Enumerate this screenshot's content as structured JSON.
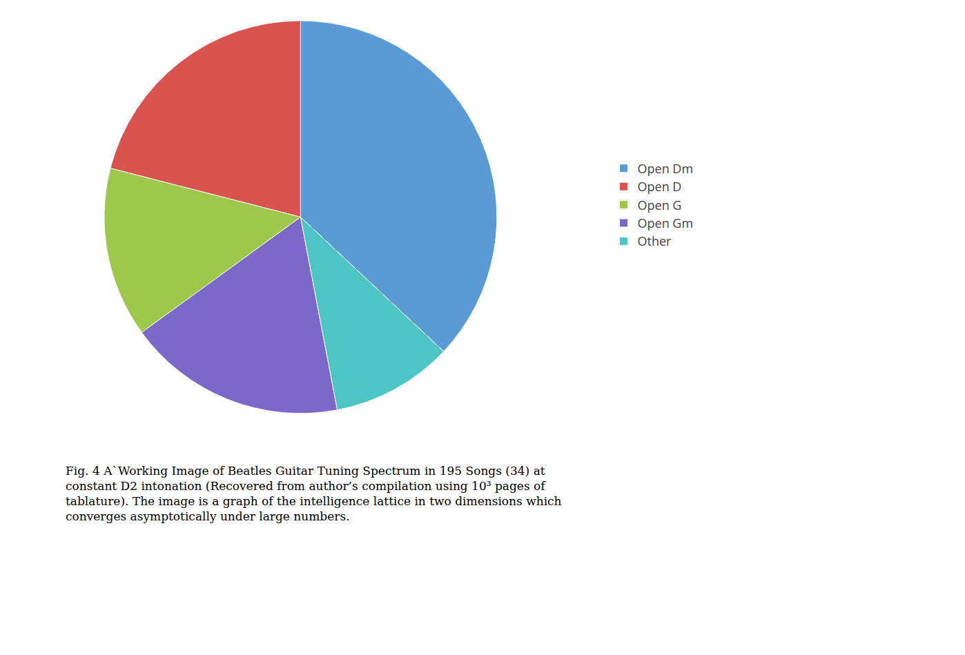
{
  "chart_data": {
    "type": "pie",
    "categories": [
      "Open Dm",
      "Open D",
      "Open G",
      "Open Gm",
      "Other"
    ],
    "values": [
      37,
      21,
      14,
      18,
      10
    ],
    "colors": [
      "#5B9BD5",
      "#D9534F",
      "#9DC84B",
      "#7B68C8",
      "#4DC5C5"
    ],
    "legend": "right",
    "data_labels": false,
    "annotations": [
      "Fig. 4 AˋWorking Image of Beatles Guitar Tuning Spectrum in 195 Songs (34) at",
      "constant D2 intonation (Recovered from author’s compilation using 10³ pages of",
      "tablature). The image is a graph of the intelligence lattice in two dimensions which",
      "converges asymptotically under large numbers."
    ]
  }
}
